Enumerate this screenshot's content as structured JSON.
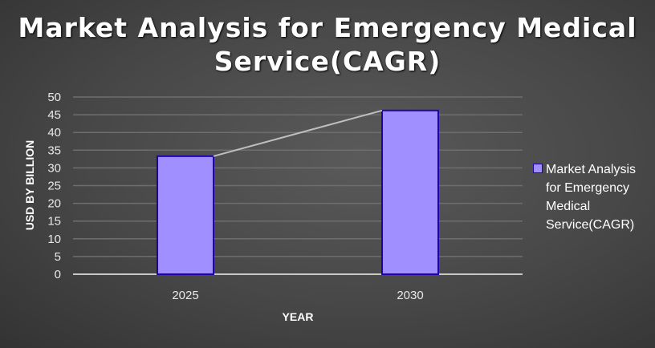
{
  "chart_data": {
    "type": "bar",
    "title": "Market Analysis for Emergency Medical Service(CAGR)",
    "title_lines": [
      "Market Analysis for Emergency Medical",
      "Service(CAGR)"
    ],
    "categories": [
      "2025",
      "2030"
    ],
    "series": [
      {
        "name": "Market Analysis for Emergency Medical Service(CAGR)",
        "values": [
          33.3,
          46.2
        ]
      }
    ],
    "xlabel": "YEAR",
    "ylabel": "USD BY BILLION",
    "ylim": [
      0,
      50
    ],
    "yticks": [
      0,
      5,
      10,
      15,
      20,
      25,
      30,
      35,
      40,
      45,
      50
    ],
    "grid": true,
    "legend_position": "right",
    "trendline": true,
    "colors": {
      "bar_fill": "#9f8fff",
      "bar_edge": "#2200aa",
      "trendline": "#bfbfbf"
    }
  },
  "legend": {
    "lines": [
      "Market Analysis",
      "for Emergency",
      "Medical",
      "Service(CAGR)"
    ]
  }
}
